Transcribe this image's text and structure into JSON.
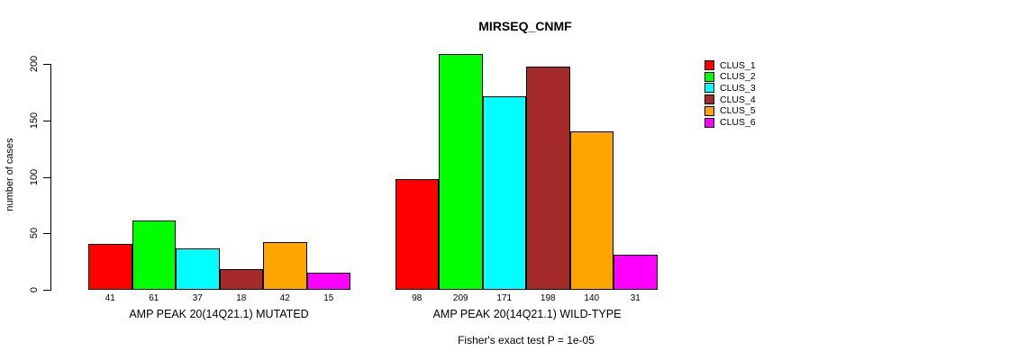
{
  "chart_data": {
    "type": "bar",
    "title": "MIRSEQ_CNMF",
    "ylabel": "number of cases",
    "xlabel": "",
    "ylim": [
      0,
      200
    ],
    "yticks": [
      0,
      50,
      100,
      150,
      200
    ],
    "grid": false,
    "bar_value_labels": true,
    "categories": [
      "CLUS_1",
      "CLUS_2",
      "CLUS_3",
      "CLUS_4",
      "CLUS_5",
      "CLUS_6"
    ],
    "series_colors": [
      "#FF0000",
      "#00FF00",
      "#00FFFF",
      "#A52A2A",
      "#FFA500",
      "#FF00FF"
    ],
    "groups": [
      {
        "label": "AMP PEAK 20(14Q21.1) MUTATED",
        "values": [
          41,
          61,
          37,
          18,
          42,
          15
        ]
      },
      {
        "label": "AMP PEAK 20(14Q21.1) WILD-TYPE",
        "values": [
          98,
          209,
          171,
          198,
          140,
          31
        ]
      }
    ],
    "legend": {
      "position": "right",
      "entries": [
        {
          "label": "CLUS_1",
          "color": "#FF0000"
        },
        {
          "label": "CLUS_2",
          "color": "#00FF00"
        },
        {
          "label": "CLUS_3",
          "color": "#00FFFF"
        },
        {
          "label": "CLUS_4",
          "color": "#A52A2A"
        },
        {
          "label": "CLUS_5",
          "color": "#FFA500"
        },
        {
          "label": "CLUS_6",
          "color": "#FF00FF"
        }
      ]
    },
    "annotation": "Fisher's exact test P = 1e-05"
  }
}
